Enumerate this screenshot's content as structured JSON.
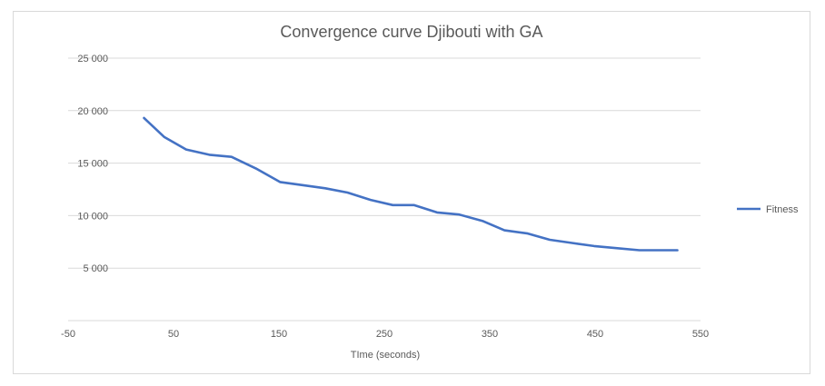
{
  "chart_data": {
    "type": "line",
    "title": "Convergence curve Djibouti with GA",
    "xlabel": "TIme (seconds)",
    "ylabel": "",
    "xlim": [
      -50,
      550
    ],
    "ylim": [
      0,
      25000
    ],
    "x_ticks": [
      -50,
      50,
      150,
      250,
      350,
      450,
      550
    ],
    "x_tick_labels": [
      "-50",
      "50",
      "150",
      "250",
      "350",
      "450",
      "550"
    ],
    "y_ticks": [
      5000,
      10000,
      15000,
      20000,
      25000
    ],
    "y_tick_labels": [
      "5 000",
      "10 000",
      "15 000",
      "20 000",
      "25 000"
    ],
    "grid": "horizontal",
    "legend_position": "right",
    "series": [
      {
        "name": "Fitness",
        "color": "#4472c4",
        "x": [
          22,
          41,
          62,
          84,
          105,
          128,
          151,
          173,
          194,
          215,
          237,
          258,
          278,
          300,
          321,
          343,
          364,
          386,
          407,
          428,
          449,
          470,
          492,
          512,
          528
        ],
        "y": [
          19300,
          17500,
          16300,
          15800,
          15600,
          14500,
          13200,
          12900,
          12600,
          12200,
          11500,
          11000,
          11000,
          10300,
          10100,
          9500,
          8600,
          8300,
          7700,
          7400,
          7100,
          6900,
          6700,
          6700,
          6700
        ]
      }
    ]
  }
}
